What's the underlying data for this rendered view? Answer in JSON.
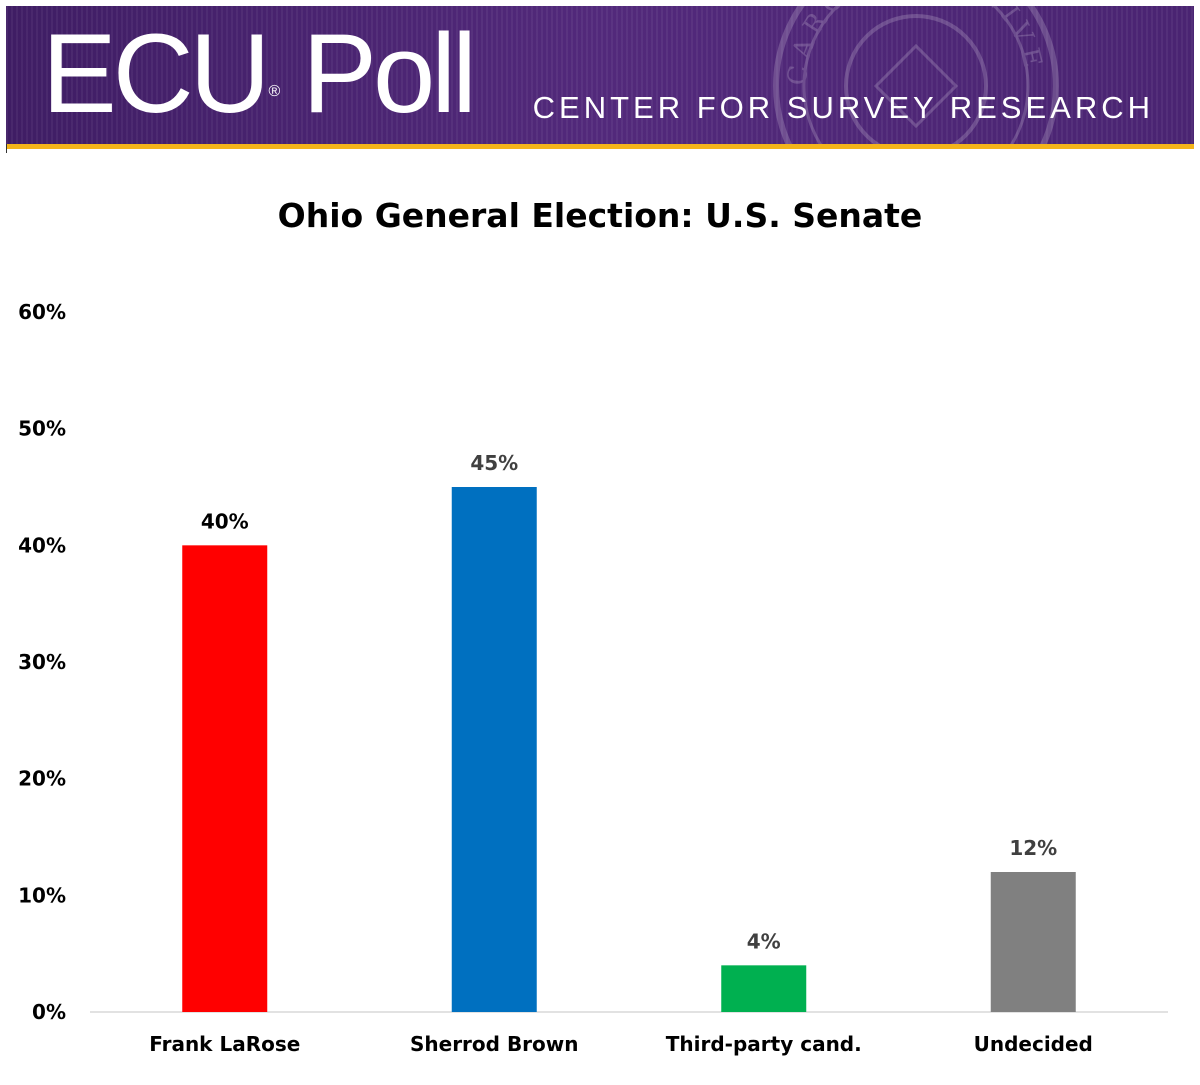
{
  "banner": {
    "logo_text": "ECU",
    "logo_reg": "®",
    "logo_text2": "Poll",
    "subtitle": "CENTER FOR SURVEY RESEARCH",
    "seal_text": "CAROLINA UNIVERSITY"
  },
  "colors": {
    "banner_purple": "#4b2573",
    "banner_gold": "#f4b41a",
    "axis": "#d9d9d9"
  },
  "chart_data": {
    "type": "bar",
    "title": "Ohio General Election: U.S. Senate",
    "xlabel": "",
    "ylabel": "",
    "categories": [
      "Frank LaRose",
      "Sherrod Brown",
      "Third-party cand.",
      "Undecided"
    ],
    "values": [
      40,
      45,
      4,
      12
    ],
    "value_labels": [
      "40%",
      "45%",
      "4%",
      "12%"
    ],
    "bar_colors": [
      "#ff0000",
      "#0070c0",
      "#00b050",
      "#808080"
    ],
    "label_colors": [
      "#000000",
      "#404040",
      "#404040",
      "#404040"
    ],
    "ylim": [
      0,
      60
    ],
    "yticks": [
      0,
      10,
      20,
      30,
      40,
      50,
      60
    ],
    "ytick_labels": [
      "0%",
      "10%",
      "20%",
      "30%",
      "40%",
      "50%",
      "60%"
    ],
    "grid": false,
    "legend": "none"
  }
}
